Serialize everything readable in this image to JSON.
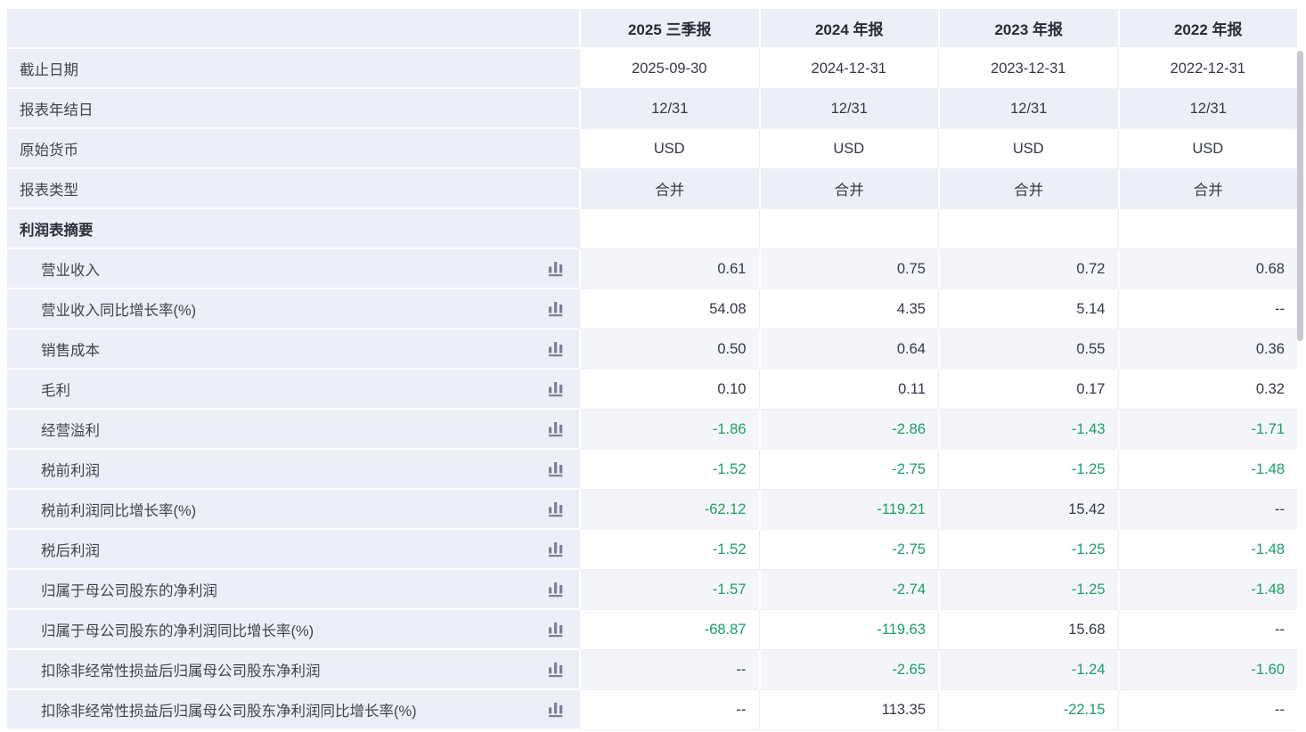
{
  "table": {
    "columns": [
      "2025 三季报",
      "2024 年报",
      "2023 年报",
      "2022 年报"
    ],
    "info_rows": [
      {
        "label": "截止日期",
        "values": [
          "2025-09-30",
          "2024-12-31",
          "2023-12-31",
          "2022-12-31"
        ]
      },
      {
        "label": "报表年结日",
        "values": [
          "12/31",
          "12/31",
          "12/31",
          "12/31"
        ]
      },
      {
        "label": "原始货币",
        "values": [
          "USD",
          "USD",
          "USD",
          "USD"
        ]
      },
      {
        "label": "报表类型",
        "values": [
          "合并",
          "合并",
          "合并",
          "合并"
        ]
      }
    ],
    "section_title": "利润表摘要",
    "metric_rows": [
      {
        "label": "营业收入",
        "values": [
          "0.61",
          "0.75",
          "0.72",
          "0.68"
        ]
      },
      {
        "label": "营业收入同比增长率(%)",
        "values": [
          "54.08",
          "4.35",
          "5.14",
          "--"
        ]
      },
      {
        "label": "销售成本",
        "values": [
          "0.50",
          "0.64",
          "0.55",
          "0.36"
        ]
      },
      {
        "label": "毛利",
        "values": [
          "0.10",
          "0.11",
          "0.17",
          "0.32"
        ]
      },
      {
        "label": "经营溢利",
        "values": [
          "-1.86",
          "-2.86",
          "-1.43",
          "-1.71"
        ]
      },
      {
        "label": "税前利润",
        "values": [
          "-1.52",
          "-2.75",
          "-1.25",
          "-1.48"
        ]
      },
      {
        "label": "税前利润同比增长率(%)",
        "values": [
          "-62.12",
          "-119.21",
          "15.42",
          "--"
        ]
      },
      {
        "label": "税后利润",
        "values": [
          "-1.52",
          "-2.75",
          "-1.25",
          "-1.48"
        ]
      },
      {
        "label": "归属于母公司股东的净利润",
        "values": [
          "-1.57",
          "-2.74",
          "-1.25",
          "-1.48"
        ]
      },
      {
        "label": "归属于母公司股东的净利润同比增长率(%)",
        "values": [
          "-68.87",
          "-119.63",
          "15.68",
          "--"
        ]
      },
      {
        "label": "扣除非经常性损益后归属母公司股东净利润",
        "values": [
          "--",
          "-2.65",
          "-1.24",
          "-1.60"
        ]
      },
      {
        "label": "扣除非经常性损益后归属母公司股东净利润同比增长率(%)",
        "values": [
          "--",
          "113.35",
          "-22.15",
          "--"
        ]
      }
    ]
  },
  "icons": {
    "metric_chart_icon": "bar-chart-icon"
  },
  "colors": {
    "header_bg": "#edeff7",
    "label_col_bg": "#edeff7",
    "tint_row_bg": "#f4f5fa",
    "negative_value": "#18a065",
    "text_dark": "#333845",
    "header_text": "#262b37",
    "icon": "#7a8095",
    "scrollbar": "#c6c8cf"
  }
}
